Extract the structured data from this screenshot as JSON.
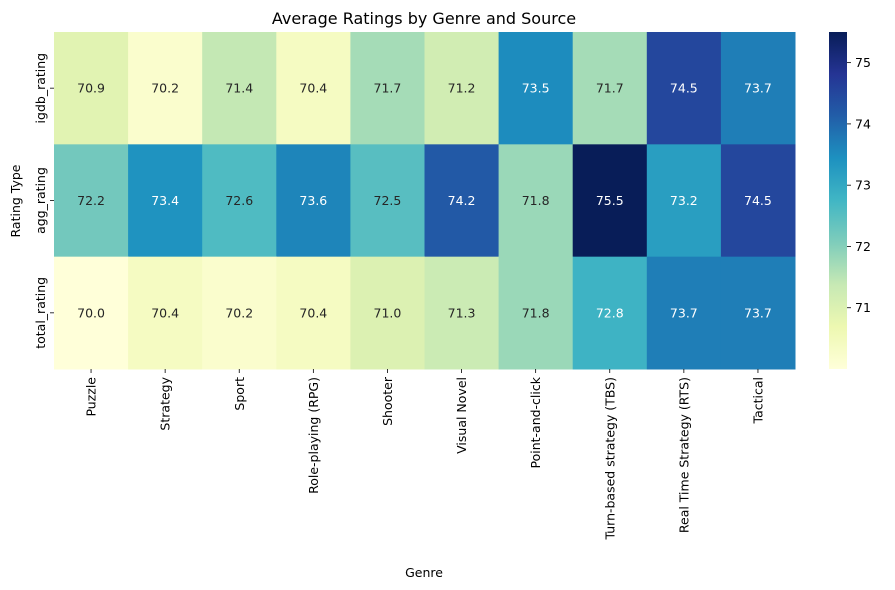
{
  "chart_data": {
    "type": "heatmap",
    "title": "Average Ratings by Genre and Source",
    "xlabel": "Genre",
    "ylabel": "Rating Type",
    "categories": [
      "Puzzle",
      "Strategy",
      "Sport",
      "Role-playing (RPG)",
      "Shooter",
      "Visual Novel",
      "Point-and-click",
      "Turn-based strategy (TBS)",
      "Real Time Strategy (RTS)",
      "Tactical"
    ],
    "rows": [
      "igdb_rating",
      "agg_rating",
      "total_rating"
    ],
    "values": [
      [
        70.9,
        70.2,
        71.4,
        70.4,
        71.7,
        71.2,
        73.5,
        71.7,
        74.5,
        73.7
      ],
      [
        72.2,
        73.4,
        72.6,
        73.6,
        72.5,
        74.2,
        71.8,
        75.5,
        73.2,
        74.5
      ],
      [
        70.0,
        70.4,
        70.2,
        70.4,
        71.0,
        71.3,
        71.8,
        72.8,
        73.7,
        73.7
      ]
    ],
    "value_labels": [
      [
        "70.9",
        "70.2",
        "71.4",
        "70.4",
        "71.7",
        "71.2",
        "73.5",
        "71.7",
        "74.5",
        "73.7"
      ],
      [
        "72.2",
        "73.4",
        "72.6",
        "73.6",
        "72.5",
        "74.2",
        "71.8",
        "75.5",
        "73.2",
        "74.5"
      ],
      [
        "70.0",
        "70.4",
        "70.2",
        "70.4",
        "71.0",
        "71.3",
        "71.8",
        "72.8",
        "73.7",
        "73.7"
      ]
    ],
    "colormap": "YlGnBu",
    "vmin": 70.0,
    "vmax": 75.5,
    "colorbar_ticks": [
      71,
      72,
      73,
      74,
      75
    ],
    "colorbar_tick_labels": [
      "71",
      "72",
      "73",
      "74",
      "75"
    ]
  }
}
